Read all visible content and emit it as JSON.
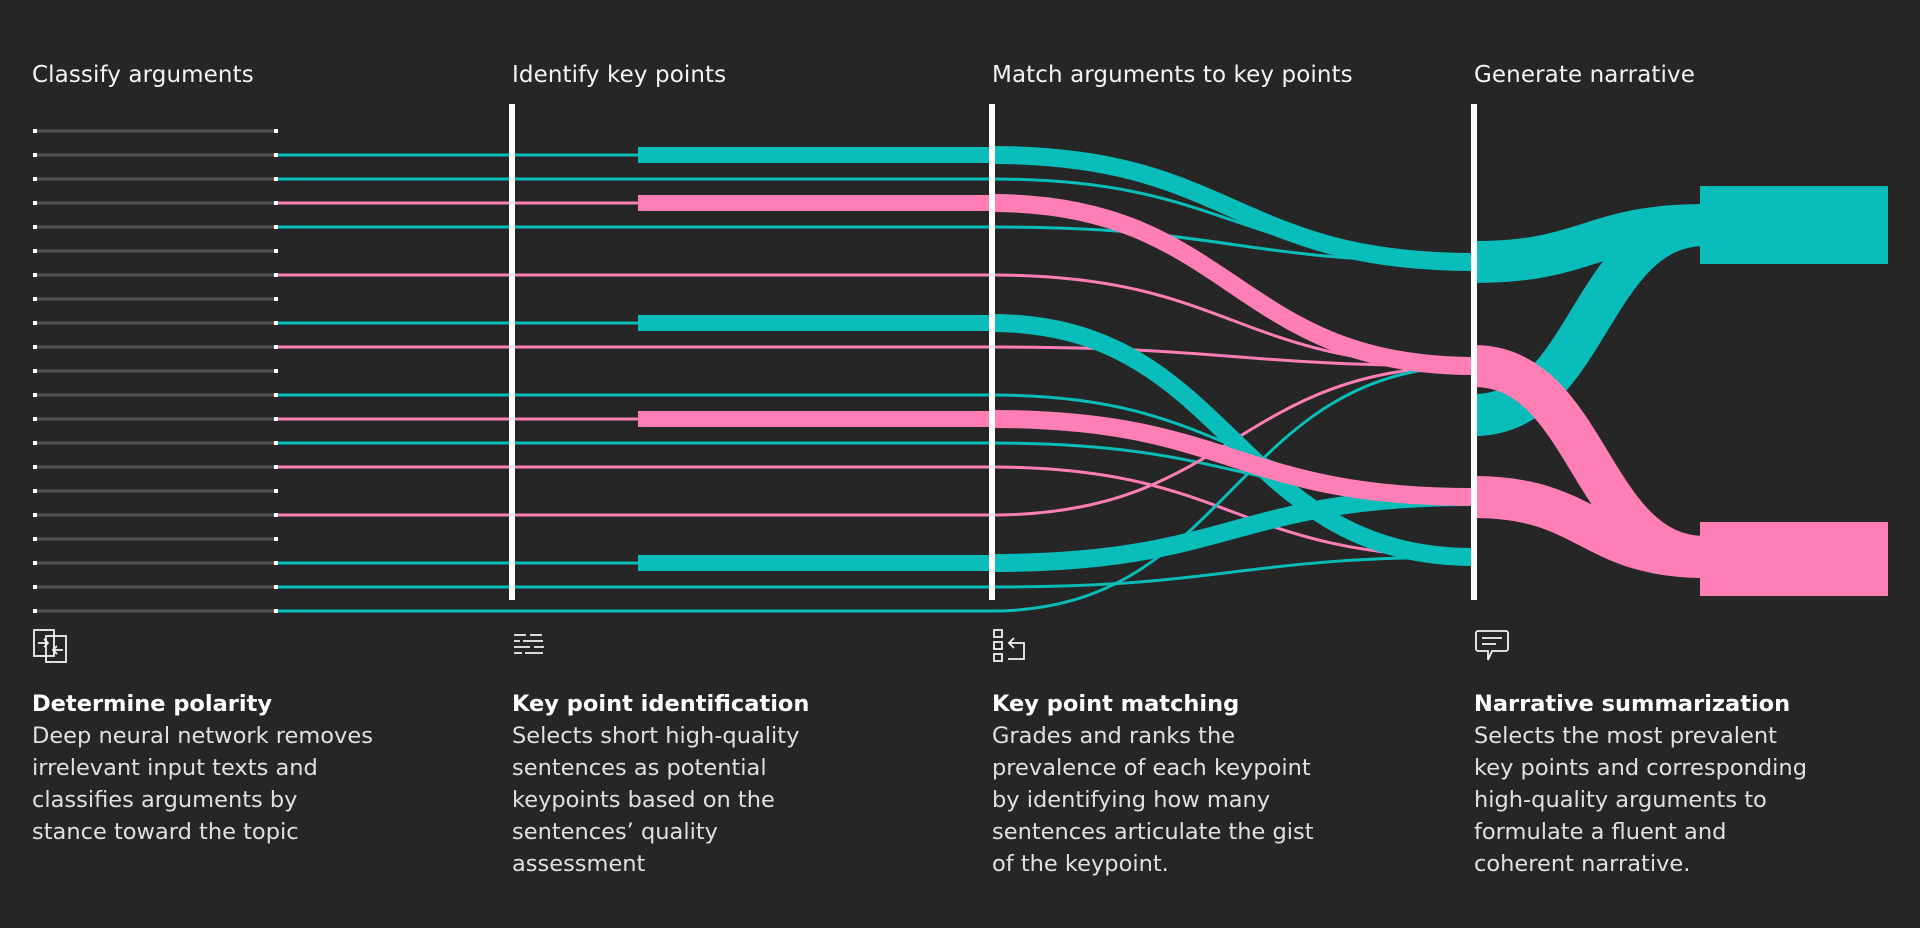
{
  "stages": [
    {
      "title": "Classify arguments",
      "icon": "polarity-icon",
      "heading": "Determine polarity",
      "body": "Deep neural network removes irrelevant input texts and classifies arguments by stance toward the topic"
    },
    {
      "title": "Identify key points",
      "icon": "identification-icon",
      "heading": "Key point identification",
      "body": "Selects short high-quality sentences as potential keypoints based on the sentences’ quality assessment"
    },
    {
      "title": "Match arguments to key points",
      "icon": "matching-icon",
      "heading": "Key point matching",
      "body": "Grades and ranks the prevalence of each keypoint by identifying how many sentences articulate the gist of the keypoint."
    },
    {
      "title": "Generate narrative",
      "icon": "narrative-icon",
      "heading": "Narrative summarization",
      "body": "Selects the most prevalent key points and corresponding high-quality arguments to formulate a fluent and coherent narrative."
    }
  ],
  "colors": {
    "background": "#262626",
    "teal": "#08bdba",
    "pink": "#ff7eb6",
    "gray": "#525252",
    "divider": "#ffffff"
  },
  "rows": [
    "none",
    "teal",
    "teal",
    "pink",
    "teal",
    "none",
    "pink",
    "none",
    "teal",
    "pink",
    "none",
    "teal",
    "pink",
    "teal",
    "pink",
    "none",
    "pink",
    "none",
    "teal",
    "teal",
    "teal"
  ],
  "key_points": [
    {
      "row": 1,
      "color": "teal"
    },
    {
      "row": 3,
      "color": "pink"
    },
    {
      "row": 8,
      "color": "teal"
    },
    {
      "row": 12,
      "color": "pink"
    },
    {
      "row": 18,
      "color": "teal"
    }
  ]
}
